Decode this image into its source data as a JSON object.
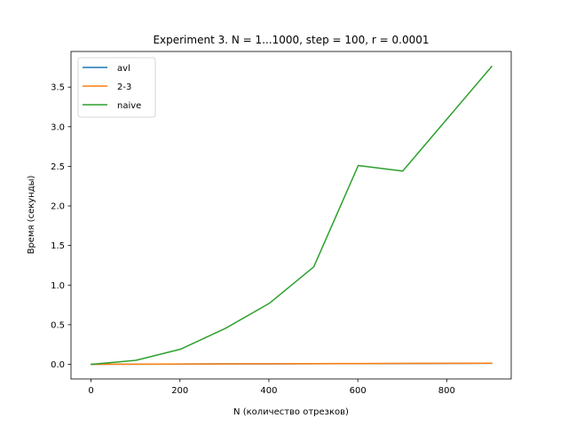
{
  "chart_data": {
    "type": "line",
    "title": "Experiment 3. N = 1...1000, step = 100, r = 0.0001",
    "xlabel": "N (количество отрезков)",
    "ylabel": "Время (секунды)",
    "xlim": [
      -45,
      945
    ],
    "ylim": [
      -0.185,
      3.95
    ],
    "xticks": [
      0,
      200,
      400,
      600,
      800
    ],
    "xtick_labels": [
      "0",
      "200",
      "400",
      "600",
      "800"
    ],
    "yticks": [
      0.0,
      0.5,
      1.0,
      1.5,
      2.0,
      2.5,
      3.0,
      3.5
    ],
    "ytick_labels": [
      "0.0",
      "0.5",
      "1.0",
      "1.5",
      "2.0",
      "2.5",
      "3.0",
      "3.5"
    ],
    "grid": false,
    "legend_position": "top-left",
    "x": [
      1,
      101,
      201,
      301,
      401,
      501,
      601,
      701,
      801,
      901
    ],
    "series": [
      {
        "name": "avl",
        "color": "#1f77b4",
        "values": [
          0.0,
          0.0015,
          0.003,
          0.005,
          0.006,
          0.007,
          0.009,
          0.01,
          0.011,
          0.013
        ]
      },
      {
        "name": "2-3",
        "color": "#ff7f0e",
        "values": [
          0.0,
          0.0018,
          0.0035,
          0.0055,
          0.007,
          0.008,
          0.01,
          0.011,
          0.012,
          0.014
        ]
      },
      {
        "name": "naive",
        "color": "#2ca02c",
        "values": [
          0.0,
          0.05,
          0.19,
          0.45,
          0.77,
          1.23,
          2.51,
          2.44,
          3.1,
          3.76
        ]
      }
    ]
  }
}
